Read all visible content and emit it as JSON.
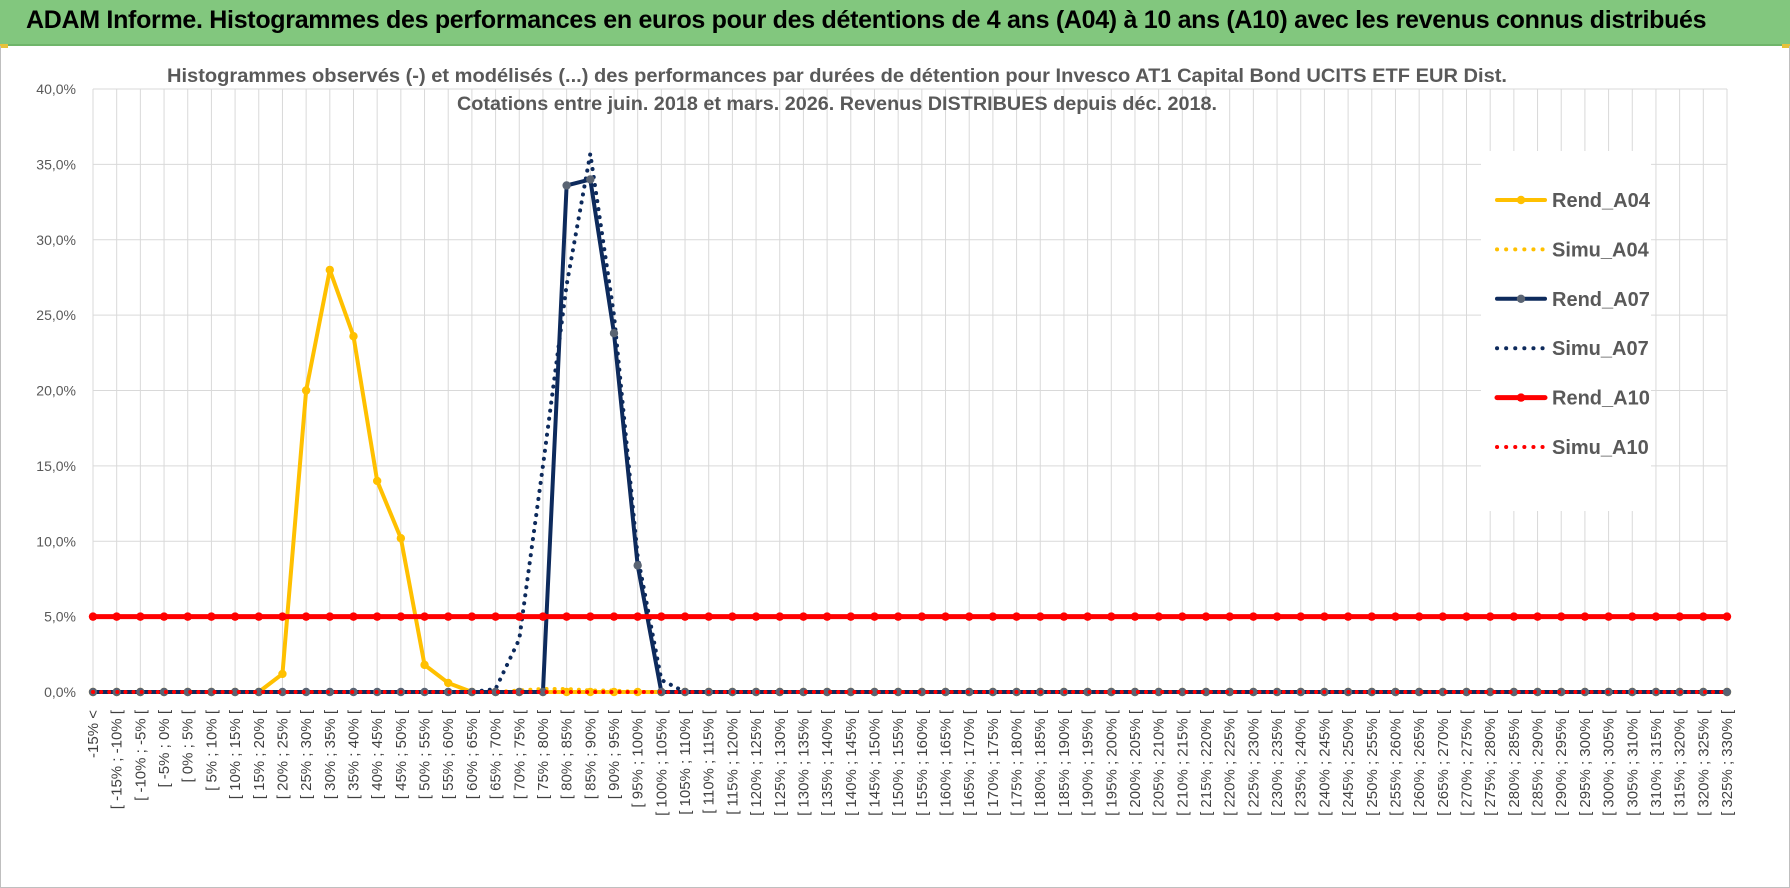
{
  "banner": {
    "title": "ADAM Informe. Histogrammes des performances en euros pour des détentions de 4 ans (A04) à 10 ans (A10) avec les revenus connus distribués"
  },
  "colors": {
    "banner_bg": "#82c77e",
    "a04": "#ffc000",
    "a07": "#0d2a5c",
    "a07_marker": "#5a6473",
    "a10": "#ff0000"
  },
  "chart_data": {
    "type": "line",
    "title": "Histogrammes observés (-) et modélisés (...) des performances par durées de détention pour Invesco AT1 Capital Bond UCITS ETF EUR Dist.",
    "subtitle": "Cotations entre juin. 2018 et mars. 2026. Revenus DISTRIBUES depuis déc. 2018.",
    "xlabel": "",
    "ylabel": "",
    "ylim": [
      0,
      40
    ],
    "yticks": [
      0,
      5,
      10,
      15,
      20,
      25,
      30,
      35,
      40
    ],
    "ytick_labels": [
      "0,0%",
      "5,0%",
      "10,0%",
      "15,0%",
      "20,0%",
      "25,0%",
      "30,0%",
      "35,0%",
      "40,0%"
    ],
    "grid": true,
    "legend_position": "right",
    "categories": [
      "-15% <",
      "[ -15% ; -10% [",
      "[ -10% ; -5% [",
      "[ -5% ; 0% [",
      "[ 0% ; 5% [",
      "[ 5% ; 10% [",
      "[ 10% ; 15% [",
      "[ 15% ; 20% [",
      "[ 20% ; 25% [",
      "[ 25% ; 30% [",
      "[ 30% ; 35% [",
      "[ 35% ; 40% [",
      "[ 40% ; 45% [",
      "[ 45% ; 50% [",
      "[ 50% ; 55% [",
      "[ 55% ; 60% [",
      "[ 60% ; 65% [",
      "[ 65% ; 70% [",
      "[ 70% ; 75% [",
      "[ 75% ; 80% [",
      "[ 80% ; 85% [",
      "[ 85% ; 90% [",
      "[ 90% ; 95% [",
      "[ 95% ; 100% [",
      "[ 100% ; 105% [",
      "[ 105% ; 110% [",
      "[ 110% ; 115% [",
      "[ 115% ; 120% [",
      "[ 120% ; 125% [",
      "[ 125% ; 130% [",
      "[ 130% ; 135% [",
      "[ 135% ; 140% [",
      "[ 140% ; 145% [",
      "[ 145% ; 150% [",
      "[ 150% ; 155% [",
      "[ 155% ; 160% [",
      "[ 160% ; 165% [",
      "[ 165% ; 170% [",
      "[ 170% ; 175% [",
      "[ 175% ; 180% [",
      "[ 180% ; 185% [",
      "[ 185% ; 190% [",
      "[ 190% ; 195% [",
      "[ 195% ; 200% [",
      "[ 200% ; 205% [",
      "[ 205% ; 210% [",
      "[ 210% ; 215% [",
      "[ 215% ; 220% [",
      "[ 220% ; 225% [",
      "[ 225% ; 230% [",
      "[ 230% ; 235% [",
      "[ 235% ; 240% [",
      "[ 240% ; 245% [",
      "[ 245% ; 250% [",
      "[ 250% ; 255% [",
      "[ 255% ; 260% [",
      "[ 260% ; 265% [",
      "[ 265% ; 270% [",
      "[ 270% ; 275% [",
      "[ 275% ; 280% [",
      "[ 280% ; 285% [",
      "[ 285% ; 290% [",
      "[ 290% ; 295% [",
      "[ 295% ; 300% [",
      "[ 300% ; 305% [",
      "[ 305% ; 310% [",
      "[ 310% ; 315% [",
      "[ 315% ; 320% [",
      "[ 320% ; 325% [",
      "[ 325% ; 330% ["
    ],
    "series": [
      {
        "name": "Rend_A04",
        "style": "solid",
        "markers": true,
        "values": [
          0,
          0,
          0,
          0,
          0,
          0,
          0,
          0,
          1.2,
          20,
          28,
          23.6,
          14,
          10.2,
          1.8,
          0.6,
          0,
          0,
          0,
          0,
          0,
          0,
          0,
          0,
          0,
          0,
          0,
          0,
          0,
          0,
          0,
          0,
          0,
          0,
          0,
          0,
          0,
          0,
          0,
          0,
          0,
          0,
          0,
          0,
          0,
          0,
          0,
          0,
          0,
          0,
          0,
          0,
          0,
          0,
          0,
          0,
          0,
          0,
          0,
          0,
          0,
          0,
          0,
          0,
          0,
          0,
          0,
          0,
          0,
          0
        ]
      },
      {
        "name": "Simu_A04",
        "style": "dotted",
        "markers": false,
        "values": [
          0,
          0,
          0,
          0,
          0,
          0,
          0,
          0,
          0,
          0,
          0,
          0,
          0,
          0,
          0,
          0,
          0,
          0,
          0.1,
          0.2,
          0.2,
          0.1,
          0.1,
          0,
          0,
          0,
          0,
          0,
          0,
          0,
          0,
          0,
          0,
          0,
          0,
          0,
          0,
          0,
          0,
          0,
          0,
          0,
          0,
          0,
          0,
          0,
          0,
          0,
          0,
          0,
          0,
          0,
          0,
          0,
          0,
          0,
          0,
          0,
          0,
          0,
          0,
          0,
          0,
          0,
          0,
          0,
          0,
          0,
          0,
          0
        ]
      },
      {
        "name": "Rend_A07",
        "style": "solid",
        "markers": true,
        "values": [
          0,
          0,
          0,
          0,
          0,
          0,
          0,
          0,
          0,
          0,
          0,
          0,
          0,
          0,
          0,
          0,
          0,
          0,
          0,
          0,
          33.6,
          34,
          23.8,
          8.4,
          0,
          0,
          0,
          0,
          0,
          0,
          0,
          0,
          0,
          0,
          0,
          0,
          0,
          0,
          0,
          0,
          0,
          0,
          0,
          0,
          0,
          0,
          0,
          0,
          0,
          0,
          0,
          0,
          0,
          0,
          0,
          0,
          0,
          0,
          0,
          0,
          0,
          0,
          0,
          0,
          0,
          0,
          0,
          0,
          0,
          0
        ]
      },
      {
        "name": "Simu_A07",
        "style": "dotted",
        "markers": false,
        "values": [
          0,
          0,
          0,
          0,
          0,
          0,
          0,
          0,
          0,
          0,
          0,
          0,
          0,
          0,
          0,
          0,
          0,
          0.2,
          3.5,
          15,
          27,
          35.7,
          25,
          9,
          0.8,
          0,
          0,
          0,
          0,
          0,
          0,
          0,
          0,
          0,
          0,
          0,
          0,
          0,
          0,
          0,
          0,
          0,
          0,
          0,
          0,
          0,
          0,
          0,
          0,
          0,
          0,
          0,
          0,
          0,
          0,
          0,
          0,
          0,
          0,
          0,
          0,
          0,
          0,
          0,
          0,
          0,
          0,
          0,
          0,
          0
        ]
      },
      {
        "name": "Rend_A10",
        "style": "solid",
        "markers": true,
        "values": [
          5,
          5,
          5,
          5,
          5,
          5,
          5,
          5,
          5,
          5,
          5,
          5,
          5,
          5,
          5,
          5,
          5,
          5,
          5,
          5,
          5,
          5,
          5,
          5,
          5,
          5,
          5,
          5,
          5,
          5,
          5,
          5,
          5,
          5,
          5,
          5,
          5,
          5,
          5,
          5,
          5,
          5,
          5,
          5,
          5,
          5,
          5,
          5,
          5,
          5,
          5,
          5,
          5,
          5,
          5,
          5,
          5,
          5,
          5,
          5,
          5,
          5,
          5,
          5,
          5,
          5,
          5,
          5,
          5,
          5
        ]
      },
      {
        "name": "Simu_A10",
        "style": "dotted",
        "markers": false,
        "values": [
          0,
          0,
          0,
          0,
          0,
          0,
          0,
          0,
          0,
          0,
          0,
          0,
          0,
          0,
          0,
          0,
          0,
          0,
          0,
          0,
          0,
          0,
          0,
          0,
          0,
          0,
          0,
          0,
          0,
          0,
          0,
          0,
          0,
          0,
          0,
          0,
          0,
          0,
          0,
          0,
          0,
          0,
          0,
          0,
          0,
          0,
          0,
          0,
          0,
          0,
          0,
          0,
          0,
          0,
          0,
          0,
          0,
          0,
          0,
          0,
          0,
          0,
          0,
          0,
          0,
          0,
          0,
          0,
          0,
          0
        ]
      }
    ]
  }
}
